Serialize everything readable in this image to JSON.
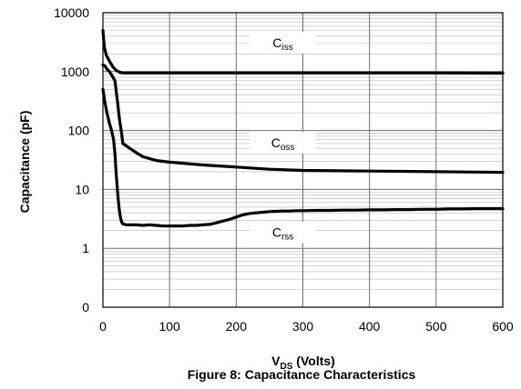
{
  "figure": {
    "caption": "Figure 8: Capacitance Characteristics"
  },
  "chart_data": {
    "type": "line",
    "title": "",
    "xlabel": {
      "main": "V",
      "sub": "DS",
      "suffix": " (Volts)"
    },
    "ylabel": "Capacitance (pF)",
    "xlim": [
      0,
      600
    ],
    "ylim": [
      0.1,
      10000
    ],
    "yscale": "log",
    "grid": true,
    "x_ticks": [
      0,
      100,
      200,
      300,
      400,
      500,
      600
    ],
    "y_ticks": [
      {
        "value": 0.1,
        "label": "0"
      },
      {
        "value": 1,
        "label": "1"
      },
      {
        "value": 10,
        "label": "10"
      },
      {
        "value": 100,
        "label": "100"
      },
      {
        "value": 1000,
        "label": "1000"
      },
      {
        "value": 10000,
        "label": "10000"
      }
    ],
    "series": [
      {
        "name": "Ciss",
        "label_main": "C",
        "label_sub": "iss",
        "label_at": [
          270,
          3000
        ],
        "x": [
          0,
          2,
          5,
          10,
          15,
          20,
          25,
          30,
          50,
          100,
          200,
          300,
          400,
          500,
          600
        ],
        "y": [
          5000,
          2600,
          1900,
          1500,
          1200,
          1050,
          980,
          950,
          950,
          950,
          950,
          950,
          950,
          950,
          940
        ]
      },
      {
        "name": "Coss",
        "label_main": "C",
        "label_sub": "oss",
        "label_at": [
          270,
          60
        ],
        "x": [
          0,
          3,
          6,
          10,
          15,
          18,
          22,
          25,
          28,
          30,
          35,
          40,
          50,
          60,
          80,
          100,
          150,
          200,
          250,
          300,
          400,
          500,
          600
        ],
        "y": [
          1300,
          1250,
          1100,
          1000,
          800,
          700,
          300,
          150,
          90,
          60,
          55,
          50,
          42,
          36,
          31,
          29,
          26,
          24,
          22,
          21,
          20.5,
          20,
          19.5
        ]
      },
      {
        "name": "Crss",
        "label_main": "C",
        "label_sub": "rss",
        "label_at": [
          270,
          1.8
        ],
        "x": [
          0,
          3,
          6,
          10,
          13,
          16,
          18,
          20,
          22,
          24,
          26,
          28,
          30,
          35,
          40,
          50,
          60,
          70,
          80,
          90,
          100,
          110,
          120,
          130,
          140,
          150,
          160,
          170,
          180,
          190,
          200,
          210,
          220,
          230,
          240,
          250,
          260,
          270,
          280,
          290,
          300,
          320,
          340,
          360,
          380,
          400,
          420,
          440,
          460,
          480,
          500,
          520,
          540,
          560,
          580,
          600
        ],
        "y": [
          500,
          300,
          200,
          130,
          100,
          70,
          40,
          18,
          9,
          5,
          3.5,
          2.8,
          2.6,
          2.5,
          2.5,
          2.5,
          2.45,
          2.5,
          2.45,
          2.4,
          2.4,
          2.4,
          2.4,
          2.45,
          2.45,
          2.5,
          2.55,
          2.7,
          2.9,
          3.1,
          3.4,
          3.7,
          3.9,
          4.0,
          4.1,
          4.2,
          4.25,
          4.3,
          4.3,
          4.35,
          4.35,
          4.4,
          4.4,
          4.45,
          4.45,
          4.5,
          4.5,
          4.55,
          4.55,
          4.6,
          4.6,
          4.65,
          4.65,
          4.7,
          4.7,
          4.7
        ]
      }
    ]
  }
}
